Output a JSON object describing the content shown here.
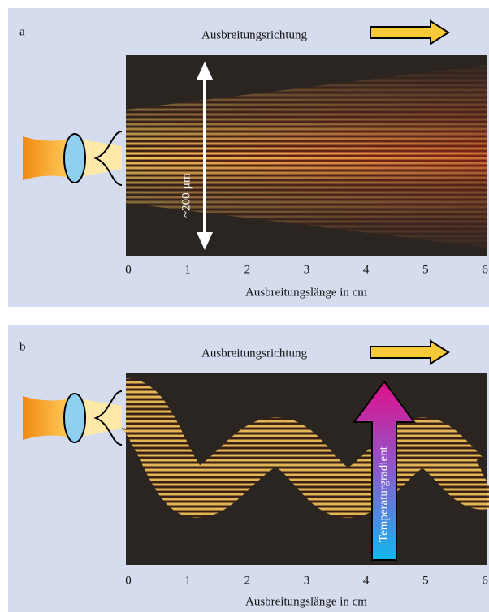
{
  "panels": [
    {
      "label": "a",
      "direction": "Ausbreitungsrichtung",
      "scale": "~200 µm",
      "ticks": [
        0,
        1,
        2,
        3,
        4,
        5,
        6
      ],
      "axis_title": "Ausbreitungslänge in cm"
    },
    {
      "label": "b",
      "direction": "Ausbreitungsrichtung",
      "gradient": "Temperaturgradient",
      "ticks": [
        0,
        1,
        2,
        3,
        4,
        5,
        6
      ],
      "axis_title": "Ausbreitungslänge in cm"
    }
  ]
}
